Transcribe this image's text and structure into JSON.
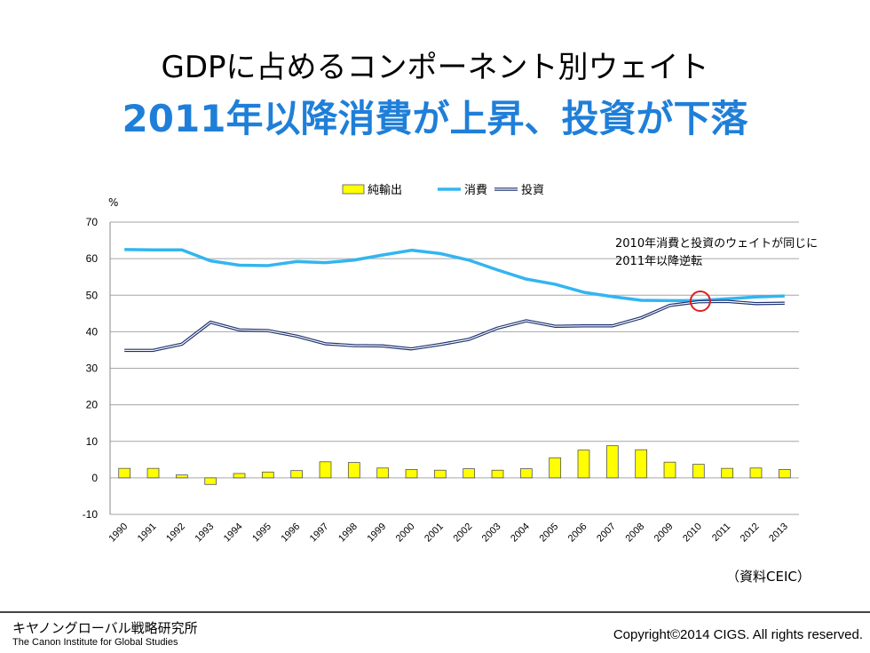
{
  "slide": {
    "title_line1": "GDPに占めるコンポーネント別ウェイト",
    "title_line2": "2011年以降消費が上昇、投資が下落",
    "source": "（資料CEIC）",
    "org_jp": "キヤノングローバル戦略研究所",
    "org_en": "The Canon Institute for Global Studies",
    "copyright": "Copyright©2014 CIGS. All rights reserved.",
    "annotation_line1": "2010年消費と投資のウェイトが同じに",
    "annotation_line2": "2011年以降逆転"
  },
  "chart_data": {
    "type": "bar+line",
    "ylabel": "%",
    "ylim": [
      -10,
      70
    ],
    "yticks": [
      -10,
      0,
      10,
      20,
      30,
      40,
      50,
      60,
      70
    ],
    "grid": true,
    "legend_position": "top",
    "categories": [
      "1990",
      "1991",
      "1992",
      "1993",
      "1994",
      "1995",
      "1996",
      "1997",
      "1998",
      "1999",
      "2000",
      "2001",
      "2002",
      "2003",
      "2004",
      "2005",
      "2006",
      "2007",
      "2008",
      "2009",
      "2010",
      "2011",
      "2012",
      "2013"
    ],
    "series": [
      {
        "name": "純輸出",
        "kind": "bar",
        "color": "#ffff00",
        "values": [
          2.6,
          2.6,
          0.8,
          -1.8,
          1.2,
          1.6,
          2.0,
          4.4,
          4.2,
          2.7,
          2.3,
          2.1,
          2.5,
          2.1,
          2.5,
          5.5,
          7.6,
          8.8,
          7.7,
          4.3,
          3.7,
          2.6,
          2.7,
          2.3
        ]
      },
      {
        "name": "消費",
        "kind": "line",
        "color": "#33b5f0",
        "values": [
          62.5,
          62.4,
          62.4,
          59.4,
          58.2,
          58.1,
          59.2,
          58.9,
          59.6,
          61.0,
          62.3,
          61.4,
          59.6,
          56.9,
          54.4,
          53.0,
          50.8,
          49.6,
          48.6,
          48.5,
          48.5,
          49.0,
          49.5,
          49.8
        ]
      },
      {
        "name": "投資",
        "kind": "line",
        "color": "#1a2f6e",
        "values": [
          34.9,
          34.9,
          36.6,
          42.6,
          40.5,
          40.3,
          38.8,
          36.7,
          36.2,
          36.1,
          35.3,
          36.5,
          37.9,
          41.0,
          43.0,
          41.5,
          41.6,
          41.6,
          43.8,
          47.2,
          48.2,
          48.3,
          47.7,
          47.8
        ]
      }
    ],
    "highlight_year": "2010",
    "highlight_color": "#e02020"
  }
}
